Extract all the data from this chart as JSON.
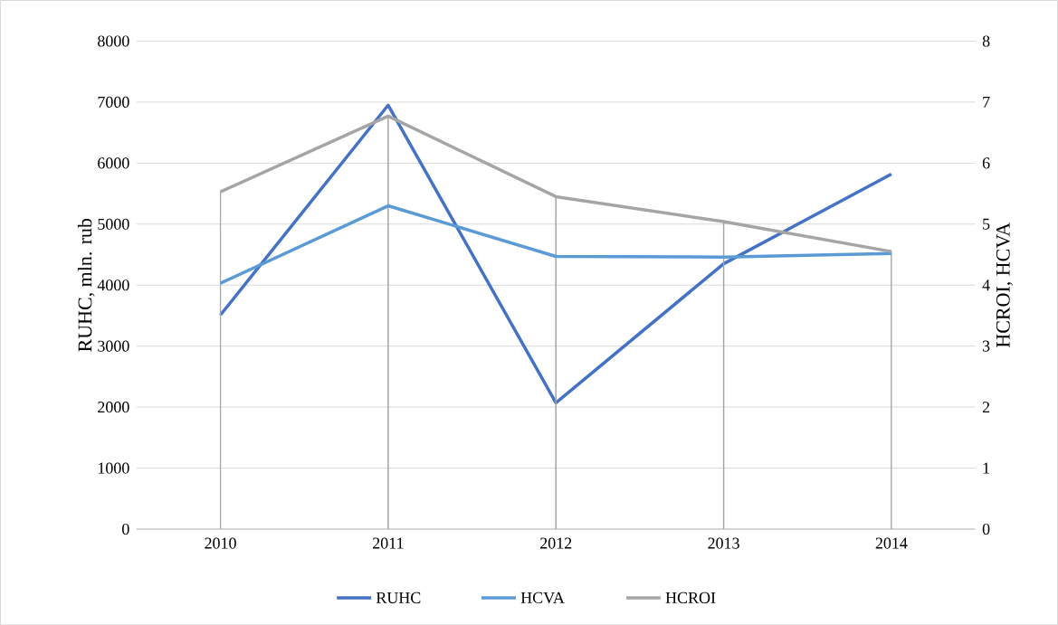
{
  "chart_data": {
    "type": "line",
    "categories": [
      "2010",
      "2011",
      "2012",
      "2013",
      "2014"
    ],
    "ylabel": "RUHC, mln. rub",
    "y2label": "HCROI, HCVA",
    "ylim": [
      0,
      8000
    ],
    "yticks": [
      0,
      1000,
      2000,
      3000,
      4000,
      5000,
      6000,
      7000,
      8000
    ],
    "y2lim": [
      0,
      8
    ],
    "y2ticks": [
      0,
      1,
      2,
      3,
      4,
      5,
      6,
      7,
      8
    ],
    "grid": "y",
    "legend": "bottom",
    "marker": "none",
    "line_style": "solid",
    "series": [
      {
        "name": "RUHC",
        "color": "#4472c4",
        "values": [
          3510,
          6950,
          2070,
          4350,
          5820
        ]
      },
      {
        "name": "HCVA",
        "color": "#5b9bd5",
        "axis": "y2",
        "values": [
          4.03,
          5.3,
          4.47,
          4.46,
          4.52
        ]
      },
      {
        "name": "HCROI",
        "color": "#a5a5a5",
        "axis": "y2",
        "values": [
          5.53,
          6.77,
          5.45,
          5.04,
          4.55
        ],
        "errors": [
          [
            0,
            5.53
          ],
          [
            0,
            6.77
          ],
          [
            0,
            5.45
          ],
          [
            0,
            5.04
          ],
          [
            0,
            4.55
          ]
        ]
      }
    ]
  }
}
